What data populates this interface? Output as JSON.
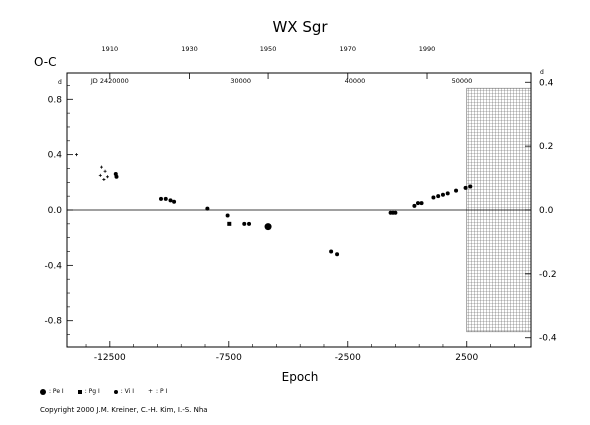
{
  "chart_data": {
    "type": "scatter",
    "title": "WX  Sgr",
    "ylabel_left": "O-C",
    "ylabel_left_unit": "d",
    "ylabel_right_unit": "d",
    "xlabel": "Epoch",
    "xlim": [
      -14300,
      5200
    ],
    "ylim": [
      -0.99,
      0.99
    ],
    "ylim_right": [
      -0.429,
      0.429
    ],
    "grid": false,
    "zero_line": true,
    "x_ticks": [
      -12500,
      -7500,
      -2500,
      2500
    ],
    "x_tick_labels": [
      "-12500",
      "-7500",
      "-2500",
      "2500"
    ],
    "y_ticks_left": [
      0.8,
      0.4,
      0.0,
      -0.4,
      -0.8
    ],
    "y_tick_labels_left": [
      "0.8",
      "0.4",
      "0.0",
      "-0.4",
      "-0.8"
    ],
    "y_ticks_right": [
      0.4,
      0.2,
      0.0,
      -0.2,
      -0.4
    ],
    "y_tick_labels_right": [
      "0.4",
      "0.2",
      "0.0",
      "-0.2",
      "-0.4"
    ],
    "top_year_ticks": [
      {
        "epoch": -12500,
        "label": "1910"
      },
      {
        "epoch": -9150,
        "label": "1930"
      },
      {
        "epoch": -5850,
        "label": "1950"
      },
      {
        "epoch": -2500,
        "label": "1970"
      },
      {
        "epoch": 830,
        "label": "1990"
      }
    ],
    "jd_labels": [
      {
        "epoch": -12500,
        "label": "JD 2420000"
      },
      {
        "epoch": -7000,
        "label": "30000"
      },
      {
        "epoch": -2200,
        "label": "40000"
      },
      {
        "epoch": 2300,
        "label": "50000"
      }
    ],
    "hatched_region": [
      2500,
      5200,
      -0.88,
      0.88
    ],
    "series": [
      {
        "name": "Pe I",
        "marker": "big-circle",
        "points": [
          [
            -5850,
            -0.12
          ]
        ]
      },
      {
        "name": "Pg I",
        "marker": "square",
        "points": [
          [
            -7480,
            -0.1
          ]
        ]
      },
      {
        "name": "Vi I",
        "marker": "circle",
        "points": [
          [
            -12250,
            0.26
          ],
          [
            -12220,
            0.24
          ],
          [
            -10350,
            0.08
          ],
          [
            -10150,
            0.08
          ],
          [
            -9950,
            0.07
          ],
          [
            -9800,
            0.06
          ],
          [
            -8400,
            0.01
          ],
          [
            -7550,
            -0.04
          ],
          [
            -6850,
            -0.1
          ],
          [
            -6650,
            -0.1
          ],
          [
            -3200,
            -0.3
          ],
          [
            -2950,
            -0.32
          ],
          [
            -700,
            -0.02
          ],
          [
            -600,
            -0.02
          ],
          [
            -500,
            -0.02
          ],
          [
            300,
            0.03
          ],
          [
            450,
            0.05
          ],
          [
            600,
            0.05
          ],
          [
            1100,
            0.09
          ],
          [
            1300,
            0.1
          ],
          [
            1500,
            0.11
          ],
          [
            1700,
            0.12
          ],
          [
            2050,
            0.14
          ],
          [
            2450,
            0.16
          ],
          [
            2650,
            0.17
          ]
        ]
      },
      {
        "name": "P I",
        "marker": "plus",
        "points": [
          [
            -13900,
            0.4
          ],
          [
            -12850,
            0.31
          ],
          [
            -12900,
            0.25
          ],
          [
            -12750,
            0.22
          ],
          [
            -12600,
            0.24
          ],
          [
            -12700,
            0.28
          ]
        ]
      }
    ]
  },
  "legend": [
    {
      "symbol": "big-circle",
      "label": ": Pe I"
    },
    {
      "symbol": "square",
      "label": ": Pg I"
    },
    {
      "symbol": "circle",
      "label": ": Vi I"
    },
    {
      "symbol": "plus",
      "label": ": P I"
    }
  ],
  "copyright": "Copyright 2000 J.M. Kreiner, C.-H. Kim, I.-S. Nha"
}
